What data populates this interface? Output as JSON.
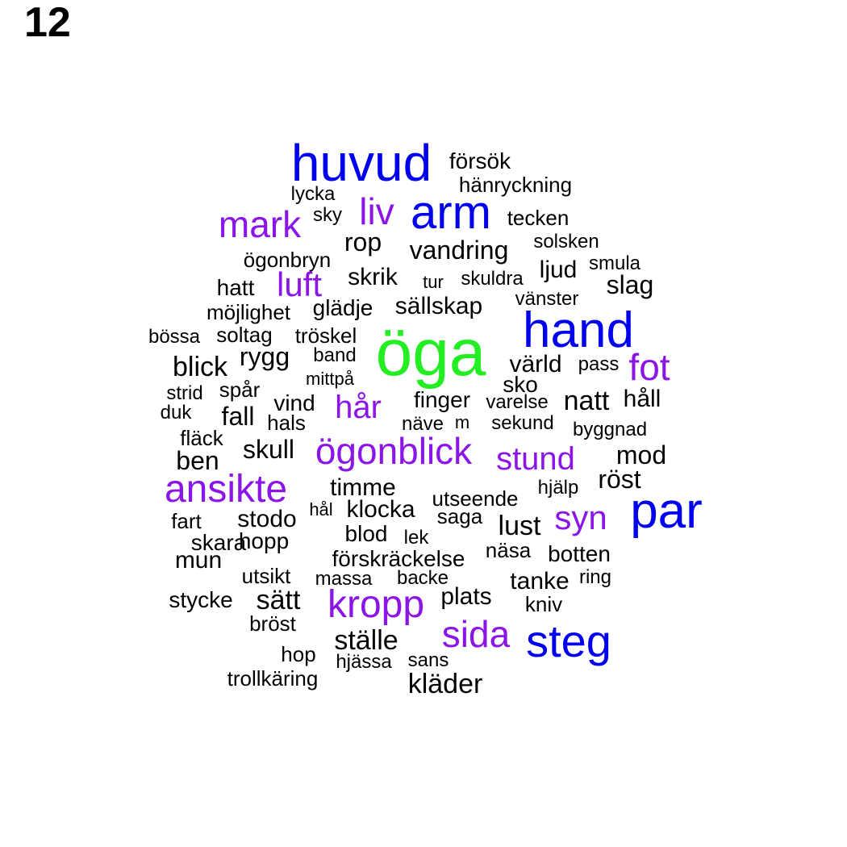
{
  "panel_label": "12",
  "palette": {
    "black": "#000000",
    "purple": "#8a15e6",
    "blue": "#0000ee",
    "green": "#22ee22"
  },
  "words": [
    {
      "text": "öga",
      "color": "green"
    },
    {
      "text": "huvud",
      "color": "blue"
    },
    {
      "text": "hand",
      "color": "blue"
    },
    {
      "text": "par",
      "color": "blue"
    },
    {
      "text": "arm",
      "color": "blue"
    },
    {
      "text": "steg",
      "color": "blue"
    },
    {
      "text": "ansikte",
      "color": "purple"
    },
    {
      "text": "kropp",
      "color": "purple"
    },
    {
      "text": "ögonblick",
      "color": "purple"
    },
    {
      "text": "mark",
      "color": "purple"
    },
    {
      "text": "sida",
      "color": "purple"
    },
    {
      "text": "fot",
      "color": "purple"
    },
    {
      "text": "liv",
      "color": "purple"
    },
    {
      "text": "syn",
      "color": "purple"
    },
    {
      "text": "luft",
      "color": "purple"
    },
    {
      "text": "hår",
      "color": "purple"
    },
    {
      "text": "stund",
      "color": "purple"
    },
    {
      "text": "kläder",
      "color": "black"
    },
    {
      "text": "ställe",
      "color": "black"
    },
    {
      "text": "sätt",
      "color": "black"
    },
    {
      "text": "lust",
      "color": "black"
    },
    {
      "text": "natt",
      "color": "black"
    },
    {
      "text": "blick",
      "color": "black"
    },
    {
      "text": "vandring",
      "color": "black"
    },
    {
      "text": "rygg",
      "color": "black"
    },
    {
      "text": "skull",
      "color": "black"
    },
    {
      "text": "ben",
      "color": "black"
    },
    {
      "text": "röst",
      "color": "black"
    },
    {
      "text": "mod",
      "color": "black"
    },
    {
      "text": "slag",
      "color": "black"
    },
    {
      "text": "rop",
      "color": "black"
    },
    {
      "text": "fall",
      "color": "black"
    },
    {
      "text": "plats",
      "color": "black"
    },
    {
      "text": "timme",
      "color": "black"
    },
    {
      "text": "klocka",
      "color": "black"
    },
    {
      "text": "stodo",
      "color": "black"
    },
    {
      "text": "tanke",
      "color": "black"
    },
    {
      "text": "mun",
      "color": "black"
    },
    {
      "text": "skrik",
      "color": "black"
    },
    {
      "text": "sällskap",
      "color": "black"
    },
    {
      "text": "värld",
      "color": "black"
    },
    {
      "text": "håll",
      "color": "black"
    },
    {
      "text": "ljud",
      "color": "black"
    },
    {
      "text": "blod",
      "color": "black"
    },
    {
      "text": "botten",
      "color": "black"
    },
    {
      "text": "förskräckelse",
      "color": "black"
    },
    {
      "text": "försök",
      "color": "black"
    },
    {
      "text": "hatt",
      "color": "black"
    },
    {
      "text": "hopp",
      "color": "black"
    },
    {
      "text": "vind",
      "color": "black"
    },
    {
      "text": "skara",
      "color": "black"
    },
    {
      "text": "stycke",
      "color": "black"
    },
    {
      "text": "finger",
      "color": "black"
    },
    {
      "text": "glädje",
      "color": "black"
    },
    {
      "text": "sko",
      "color": "black"
    },
    {
      "text": "utsikt",
      "color": "black"
    },
    {
      "text": "fläck",
      "color": "black"
    },
    {
      "text": "möjlighet",
      "color": "black"
    },
    {
      "text": "ögonbryn",
      "color": "black"
    },
    {
      "text": "tecken",
      "color": "black"
    },
    {
      "text": "hänryckning",
      "color": "black"
    },
    {
      "text": "solsken",
      "color": "black"
    },
    {
      "text": "smula",
      "color": "black"
    },
    {
      "text": "skuldra",
      "color": "black"
    },
    {
      "text": "vänster",
      "color": "black"
    },
    {
      "text": "tröskel",
      "color": "black"
    },
    {
      "text": "band",
      "color": "black"
    },
    {
      "text": "pass",
      "color": "black"
    },
    {
      "text": "varelse",
      "color": "black"
    },
    {
      "text": "sekund",
      "color": "black"
    },
    {
      "text": "byggnad",
      "color": "black"
    },
    {
      "text": "utseende",
      "color": "black"
    },
    {
      "text": "hjälp",
      "color": "black"
    },
    {
      "text": "saga",
      "color": "black"
    },
    {
      "text": "näsa",
      "color": "black"
    },
    {
      "text": "ring",
      "color": "black"
    },
    {
      "text": "kniv",
      "color": "black"
    },
    {
      "text": "massa",
      "color": "black"
    },
    {
      "text": "backe",
      "color": "black"
    },
    {
      "text": "bröst",
      "color": "black"
    },
    {
      "text": "hjässa",
      "color": "black"
    },
    {
      "text": "sans",
      "color": "black"
    },
    {
      "text": "trollkäring",
      "color": "black"
    },
    {
      "text": "hop",
      "color": "black"
    },
    {
      "text": "lycka",
      "color": "black"
    },
    {
      "text": "sky",
      "color": "black"
    },
    {
      "text": "bössa",
      "color": "black"
    },
    {
      "text": "soltag",
      "color": "black"
    },
    {
      "text": "mittpå",
      "color": "black"
    },
    {
      "text": "spår",
      "color": "black"
    },
    {
      "text": "strid",
      "color": "black"
    },
    {
      "text": "duk",
      "color": "black"
    },
    {
      "text": "hals",
      "color": "black"
    },
    {
      "text": "näve",
      "color": "black"
    },
    {
      "text": "m",
      "color": "black"
    },
    {
      "text": "fart",
      "color": "black"
    },
    {
      "text": "hål",
      "color": "black"
    },
    {
      "text": "lek",
      "color": "black"
    },
    {
      "text": "tur",
      "color": "black"
    }
  ]
}
